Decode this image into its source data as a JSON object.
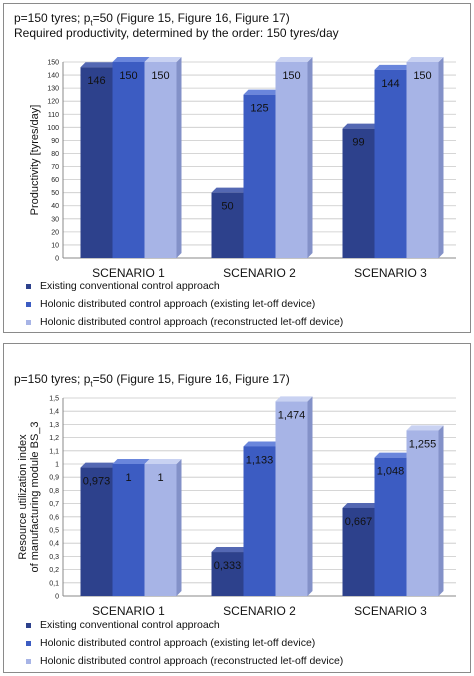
{
  "charts": [
    {
      "head_line1_pre": "p=150 tyres; p",
      "head_line1_sub": "t",
      "head_line1_post": "=50 (Figure 15, Figure 16, Figure 17)",
      "head_line2": "Required productivity, determined by the order: 150 tyres/day",
      "chart_data": {
        "type": "bar",
        "categories": [
          "SCENARIO 1",
          "SCENARIO 2",
          "SCENARIO 3"
        ],
        "series": [
          {
            "name": "Existing conventional control approach",
            "values": [
              146,
              50,
              99
            ],
            "labels": [
              "146",
              "50",
              "99"
            ]
          },
          {
            "name": "Holonic distributed control approach (existing let-off device)",
            "values": [
              150,
              125,
              144
            ],
            "labels": [
              "150",
              "125",
              "144"
            ]
          },
          {
            "name": "Holonic distributed control approach (reconstructed let-off device)",
            "values": [
              150,
              150,
              150
            ],
            "labels": [
              "150",
              "150",
              "150"
            ]
          }
        ],
        "ylabel": "Productivity [tyres/day]",
        "ylim": [
          0,
          150
        ],
        "yticks": [
          "0",
          "10",
          "20",
          "30",
          "40",
          "50",
          "60",
          "70",
          "80",
          "90",
          "100",
          "110",
          "120",
          "130",
          "140",
          "150"
        ],
        "grid": true,
        "legend": "bottom"
      }
    },
    {
      "head_line1_pre": "p=150 tyres; p",
      "head_line1_sub": "t",
      "head_line1_post": "=50 (Figure 15, Figure 16, Figure 17)",
      "chart_data": {
        "type": "bar",
        "categories": [
          "SCENARIO 1",
          "SCENARIO 2",
          "SCENARIO 3"
        ],
        "series": [
          {
            "name": "Existing conventional control approach",
            "values": [
              0.973,
              0.333,
              0.667
            ],
            "labels": [
              "0,973",
              "0,333",
              "0,667"
            ]
          },
          {
            "name": "Holonic distributed control approach (existing let-off device)",
            "values": [
              1,
              1.133,
              1.048
            ],
            "labels": [
              "1",
              "1,133",
              "1,048"
            ]
          },
          {
            "name": "Holonic distributed control approach (reconstructed let-off device)",
            "values": [
              1,
              1.474,
              1.255
            ],
            "labels": [
              "1",
              "1,474",
              "1,255"
            ]
          }
        ],
        "ylabel_line1": "Resource utilization index",
        "ylabel_line2": "of manufacturing module BS_3",
        "ylim": [
          0,
          1.5
        ],
        "yticks": [
          "0",
          "0,1",
          "0,2",
          "0,3",
          "0,4",
          "0,5",
          "0,6",
          "0,7",
          "0,8",
          "0,9",
          "1",
          "1,1",
          "1,2",
          "1,3",
          "1,4",
          "1,5"
        ],
        "grid": true,
        "legend": "bottom"
      }
    }
  ],
  "colors": {
    "series_front": [
      "#2d418c",
      "#3c5cc2",
      "#a7b4e6"
    ],
    "series_top": [
      "#5468b3",
      "#6a86dc",
      "#c9d2f2"
    ],
    "series_side": [
      "#1f2f6a",
      "#2c469a",
      "#8391c8"
    ],
    "grid": "#c8c8c8",
    "axis": "#888888"
  }
}
